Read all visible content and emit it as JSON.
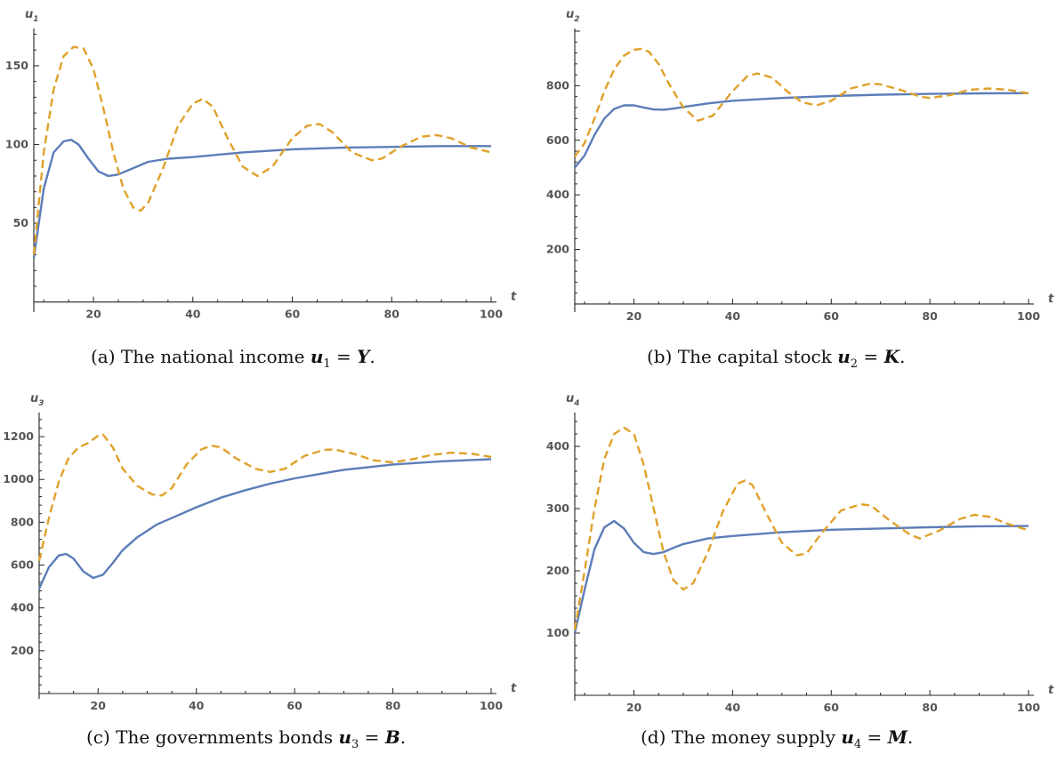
{
  "chart_data": [
    {
      "type": "line",
      "ylabel": "u",
      "ylabel_sub": "1",
      "xlabel": "t",
      "xlim": [
        8,
        100
      ],
      "ylim": [
        -3,
        172
      ],
      "xticks": [
        20,
        40,
        60,
        80,
        100
      ],
      "yticks": [
        50,
        100,
        150
      ],
      "series": [
        {
          "style": "solid",
          "color": "#5b7db8",
          "x": [
            8,
            10,
            12,
            14,
            15.5,
            17,
            19,
            21,
            23,
            25,
            28,
            31,
            35,
            40,
            50,
            60,
            70,
            80,
            90,
            100
          ],
          "y": [
            28,
            72,
            95,
            102,
            103,
            100,
            91,
            83,
            80,
            81,
            85,
            89,
            91,
            92,
            95,
            97,
            98,
            98.5,
            99,
            99
          ]
        },
        {
          "style": "dashed",
          "color": "#e0a12a",
          "x": [
            8,
            10,
            12,
            14,
            16,
            18,
            20,
            22,
            24,
            26,
            28,
            29.5,
            31,
            34,
            37,
            40,
            42,
            44,
            47,
            50,
            53,
            56,
            60,
            63,
            65.5,
            68,
            72,
            76,
            78,
            82,
            86,
            89,
            92,
            96,
            100
          ],
          "y": [
            30,
            95,
            135,
            156,
            162,
            161,
            148,
            123,
            95,
            72,
            60,
            58,
            63,
            85,
            112,
            126,
            129,
            124,
            104,
            86,
            80,
            86,
            104,
            112,
            113,
            108,
            95,
            90,
            91,
            99,
            105,
            106,
            104,
            98,
            95
          ]
        }
      ],
      "caption_prefix": "(a)  The national income ",
      "caption_var": "u",
      "caption_sub": "1",
      "caption_suffix": " = ",
      "caption_sym": "Y",
      "caption_end": "."
    },
    {
      "type": "line",
      "ylabel": "u",
      "ylabel_sub": "2",
      "xlabel": "t",
      "xlim": [
        8,
        100
      ],
      "ylim": [
        -10,
        1000
      ],
      "xticks": [
        20,
        40,
        60,
        80,
        100
      ],
      "yticks": [
        200,
        400,
        600,
        800
      ],
      "series": [
        {
          "style": "solid",
          "color": "#5b7db8",
          "x": [
            8,
            10,
            12,
            14,
            16,
            18,
            20,
            22,
            24,
            26,
            28,
            30,
            35,
            40,
            50,
            60,
            70,
            80,
            90,
            100
          ],
          "y": [
            500,
            545,
            620,
            680,
            715,
            728,
            728,
            720,
            713,
            712,
            716,
            722,
            735,
            745,
            755,
            762,
            767,
            770,
            772,
            773
          ]
        },
        {
          "style": "dashed",
          "color": "#e0a12a",
          "x": [
            8,
            10,
            12,
            14,
            16,
            18,
            20,
            21.5,
            23,
            25,
            27,
            30,
            33,
            36,
            40,
            43,
            45,
            48,
            51,
            54,
            57,
            60,
            64,
            68,
            70,
            74,
            78,
            80,
            84,
            88,
            92,
            96,
            100
          ],
          "y": [
            540,
            590,
            680,
            780,
            860,
            910,
            932,
            935,
            925,
            880,
            810,
            720,
            672,
            690,
            780,
            835,
            845,
            830,
            780,
            740,
            728,
            745,
            790,
            808,
            805,
            785,
            760,
            755,
            765,
            785,
            790,
            785,
            772
          ]
        }
      ],
      "caption_prefix": "(b)  The capital stock ",
      "caption_var": "u",
      "caption_sub": "2",
      "caption_suffix": " = ",
      "caption_sym": "K",
      "caption_end": "."
    },
    {
      "type": "line",
      "ylabel": "u",
      "ylabel_sub": "3",
      "xlabel": "t",
      "xlim": [
        8,
        100
      ],
      "ylim": [
        0,
        1300
      ],
      "xticks": [
        20,
        40,
        60,
        80,
        100
      ],
      "yticks": [
        200,
        400,
        600,
        800,
        1000,
        1200
      ],
      "series": [
        {
          "style": "solid",
          "color": "#5b7db8",
          "x": [
            8,
            10,
            12,
            13.5,
            15,
            17,
            19,
            21,
            23,
            25,
            28,
            32,
            36,
            40,
            45,
            50,
            55,
            60,
            70,
            80,
            90,
            100
          ],
          "y": [
            490,
            590,
            645,
            652,
            630,
            570,
            540,
            555,
            610,
            670,
            730,
            790,
            830,
            870,
            915,
            950,
            980,
            1005,
            1045,
            1070,
            1085,
            1095
          ]
        },
        {
          "style": "dashed",
          "color": "#e0a12a",
          "x": [
            8,
            10,
            12,
            14,
            16,
            18,
            20,
            21,
            23,
            25,
            28,
            31,
            33,
            35,
            38,
            41,
            43,
            45,
            48,
            52,
            55,
            58,
            62,
            66,
            68,
            72,
            76,
            80,
            84,
            88,
            92,
            96,
            100
          ],
          "y": [
            620,
            820,
            990,
            1100,
            1150,
            1170,
            1205,
            1210,
            1150,
            1050,
            970,
            930,
            925,
            960,
            1070,
            1140,
            1158,
            1150,
            1100,
            1050,
            1035,
            1050,
            1110,
            1138,
            1140,
            1120,
            1090,
            1080,
            1095,
            1115,
            1125,
            1120,
            1105
          ]
        }
      ],
      "caption_prefix": "(c)  The governments bonds ",
      "caption_var": "u",
      "caption_sub": "3",
      "caption_suffix": " = ",
      "caption_sym": "B",
      "caption_end": "."
    },
    {
      "type": "line",
      "ylabel": "u",
      "ylabel_sub": "4",
      "xlabel": "t",
      "xlim": [
        8,
        100
      ],
      "ylim": [
        0,
        450
      ],
      "xticks": [
        20,
        40,
        60,
        80,
        100
      ],
      "yticks": [
        100,
        200,
        300,
        400
      ],
      "series": [
        {
          "style": "solid",
          "color": "#5b7db8",
          "x": [
            8,
            10,
            12,
            14,
            16,
            18,
            20,
            22,
            24,
            26,
            28,
            30,
            35,
            40,
            50,
            60,
            70,
            80,
            90,
            100
          ],
          "y": [
            100,
            170,
            235,
            270,
            280,
            268,
            245,
            230,
            227,
            230,
            237,
            243,
            252,
            256,
            262,
            266,
            268,
            270,
            271.5,
            272
          ]
        },
        {
          "style": "dashed",
          "color": "#e0a12a",
          "x": [
            8,
            10,
            12,
            14,
            16,
            18,
            20,
            22,
            24,
            26,
            28,
            30,
            32,
            35,
            38,
            41,
            42.5,
            44,
            47,
            50,
            53,
            55,
            58,
            62,
            66,
            68,
            72,
            76,
            78,
            82,
            86,
            89,
            92,
            96,
            100
          ],
          "y": [
            105,
            200,
            300,
            380,
            420,
            430,
            420,
            370,
            300,
            230,
            185,
            170,
            180,
            230,
            295,
            340,
            345,
            338,
            290,
            245,
            225,
            228,
            260,
            297,
            307,
            305,
            280,
            258,
            252,
            265,
            283,
            290,
            287,
            275,
            265
          ]
        }
      ],
      "caption_prefix": "(d)  The money supply ",
      "caption_var": "u",
      "caption_sub": "4",
      "caption_suffix": " = ",
      "caption_sym": "M",
      "caption_end": "."
    }
  ]
}
